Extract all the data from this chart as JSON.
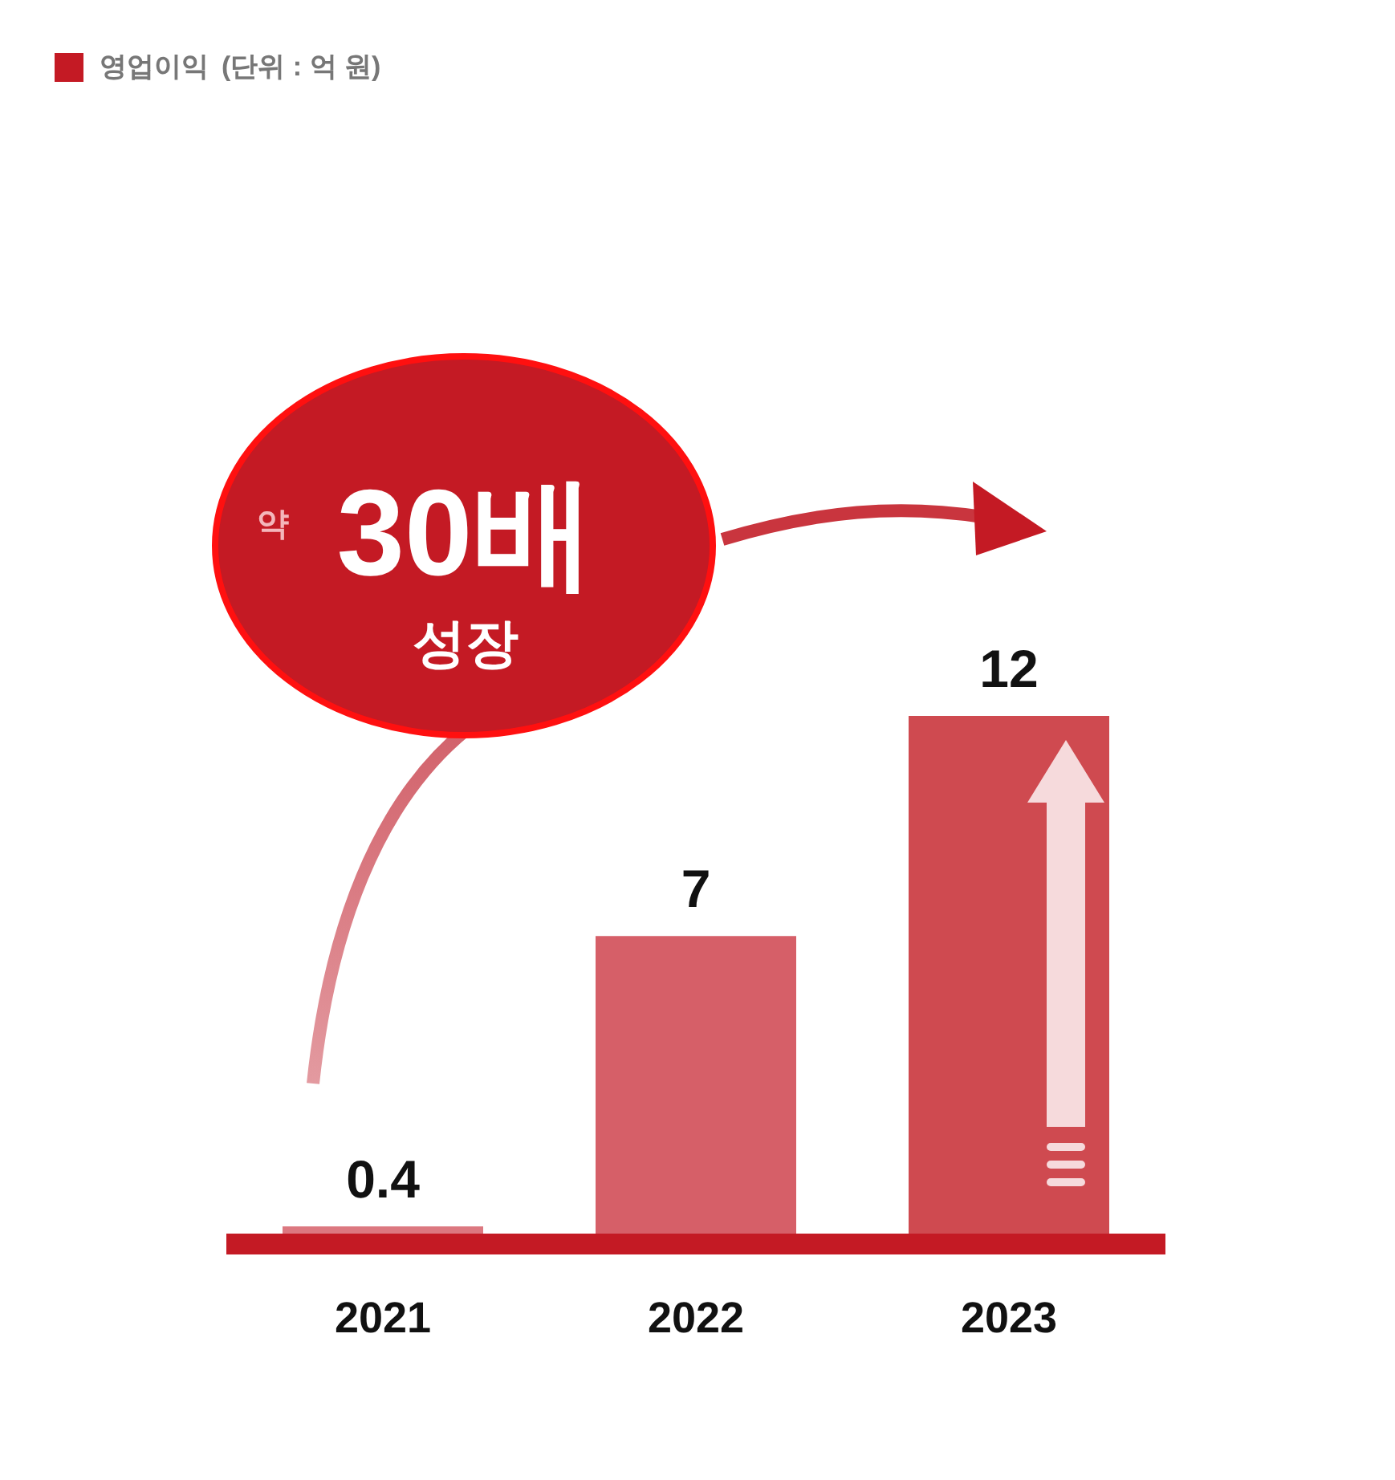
{
  "chart_data": {
    "type": "bar",
    "categories": [
      "2021",
      "2022",
      "2023"
    ],
    "series": [
      {
        "name": "영업이익",
        "color": "#c41a24",
        "colors": [
          "#dc7880",
          "#d65f68",
          "#cf4a50"
        ],
        "values": [
          0.4,
          7,
          12
        ]
      }
    ],
    "data_labels": true,
    "legend": "top left",
    "grid": false,
    "annotations": [
      "(단위 : 억 원)",
      "약",
      "30배",
      "성장"
    ]
  }
}
